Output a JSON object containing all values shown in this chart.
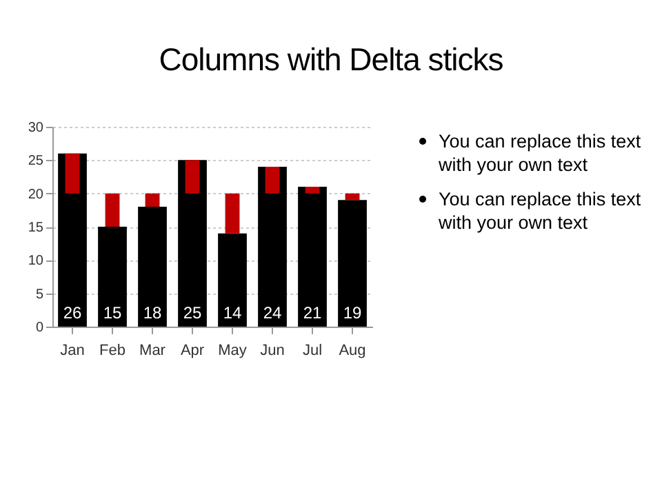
{
  "chart_data": {
    "type": "bar",
    "title": "Columns with Delta sticks",
    "categories": [
      "Jan",
      "Feb",
      "Mar",
      "Apr",
      "May",
      "Jun",
      "Jul",
      "Aug"
    ],
    "series": [
      {
        "color": "#000000",
        "values": [
          26,
          15,
          18,
          25,
          14,
          24,
          21,
          19
        ],
        "value_labels": [
          "26",
          "15",
          "18",
          "25",
          "14",
          "24",
          "21",
          "19"
        ]
      },
      {
        "color": "#c00000",
        "base": [
          20,
          15,
          18,
          20,
          14,
          20,
          20,
          19
        ],
        "values": [
          6,
          5,
          2,
          5,
          6,
          4,
          1,
          1
        ]
      }
    ],
    "ylim": [
      0,
      30
    ],
    "yticks": [
      0,
      5,
      10,
      15,
      20,
      25,
      30
    ],
    "grid": "y",
    "annotations": [
      "You can replace this text with your own text",
      "You can replace this text with your own text"
    ]
  }
}
